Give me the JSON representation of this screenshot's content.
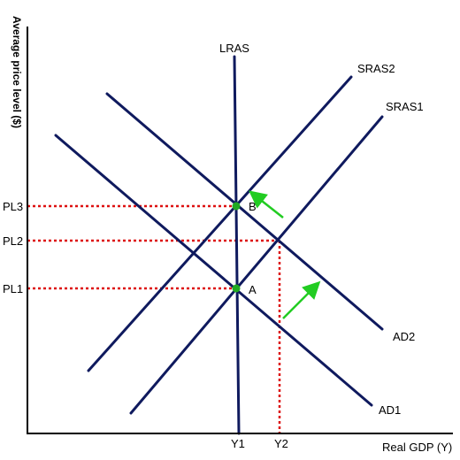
{
  "chart_data": {
    "type": "line",
    "xlabel": "Real GDP (Y)",
    "ylabel": "Average price level ($)",
    "x_ticks": [
      "Y1",
      "Y2"
    ],
    "y_ticks": [
      "PL1",
      "PL2",
      "PL3"
    ],
    "series": [
      {
        "name": "LRAS",
        "color": "#0f1a5e",
        "points": [
          [
            265,
            64
          ],
          [
            270,
            490
          ]
        ]
      },
      {
        "name": "SRAS1",
        "color": "#0f1a5e",
        "points": [
          [
            148,
            467
          ],
          [
            432,
            132
          ]
        ]
      },
      {
        "name": "SRAS2",
        "color": "#0f1a5e",
        "points": [
          [
            100,
            419
          ],
          [
            397,
            87
          ]
        ]
      },
      {
        "name": "AD1",
        "color": "#0f1a5e",
        "points": [
          [
            63,
            153
          ],
          [
            420,
            458
          ]
        ]
      },
      {
        "name": "AD2",
        "color": "#0f1a5e",
        "points": [
          [
            121,
            106
          ],
          [
            432,
            372
          ]
        ]
      }
    ],
    "equilibria": [
      {
        "label": "A",
        "x": 267,
        "y": 326,
        "color": "#22aa22"
      },
      {
        "label": "B",
        "x": 267,
        "y": 233,
        "color": "#22aa22"
      }
    ],
    "reference_lines": [
      {
        "label": "PL3",
        "y": 233,
        "to_x": 267
      },
      {
        "label": "PL2",
        "y": 272,
        "to_x": 316
      },
      {
        "label": "PL1",
        "y": 326,
        "to_x": 267
      },
      {
        "label": "Y2",
        "x": 316,
        "from_y": 272
      }
    ],
    "shift_arrows": [
      {
        "from": [
          320,
          246
        ],
        "to": [
          287,
          220
        ],
        "color": "#22cc22"
      },
      {
        "from": [
          320,
          360
        ],
        "to": [
          357,
          323
        ],
        "color": "#22cc22"
      }
    ],
    "colors": {
      "curve": "#0f1a5e",
      "dotted": "#dd1111",
      "point": "#22aa22",
      "arrow": "#22cc22"
    }
  }
}
